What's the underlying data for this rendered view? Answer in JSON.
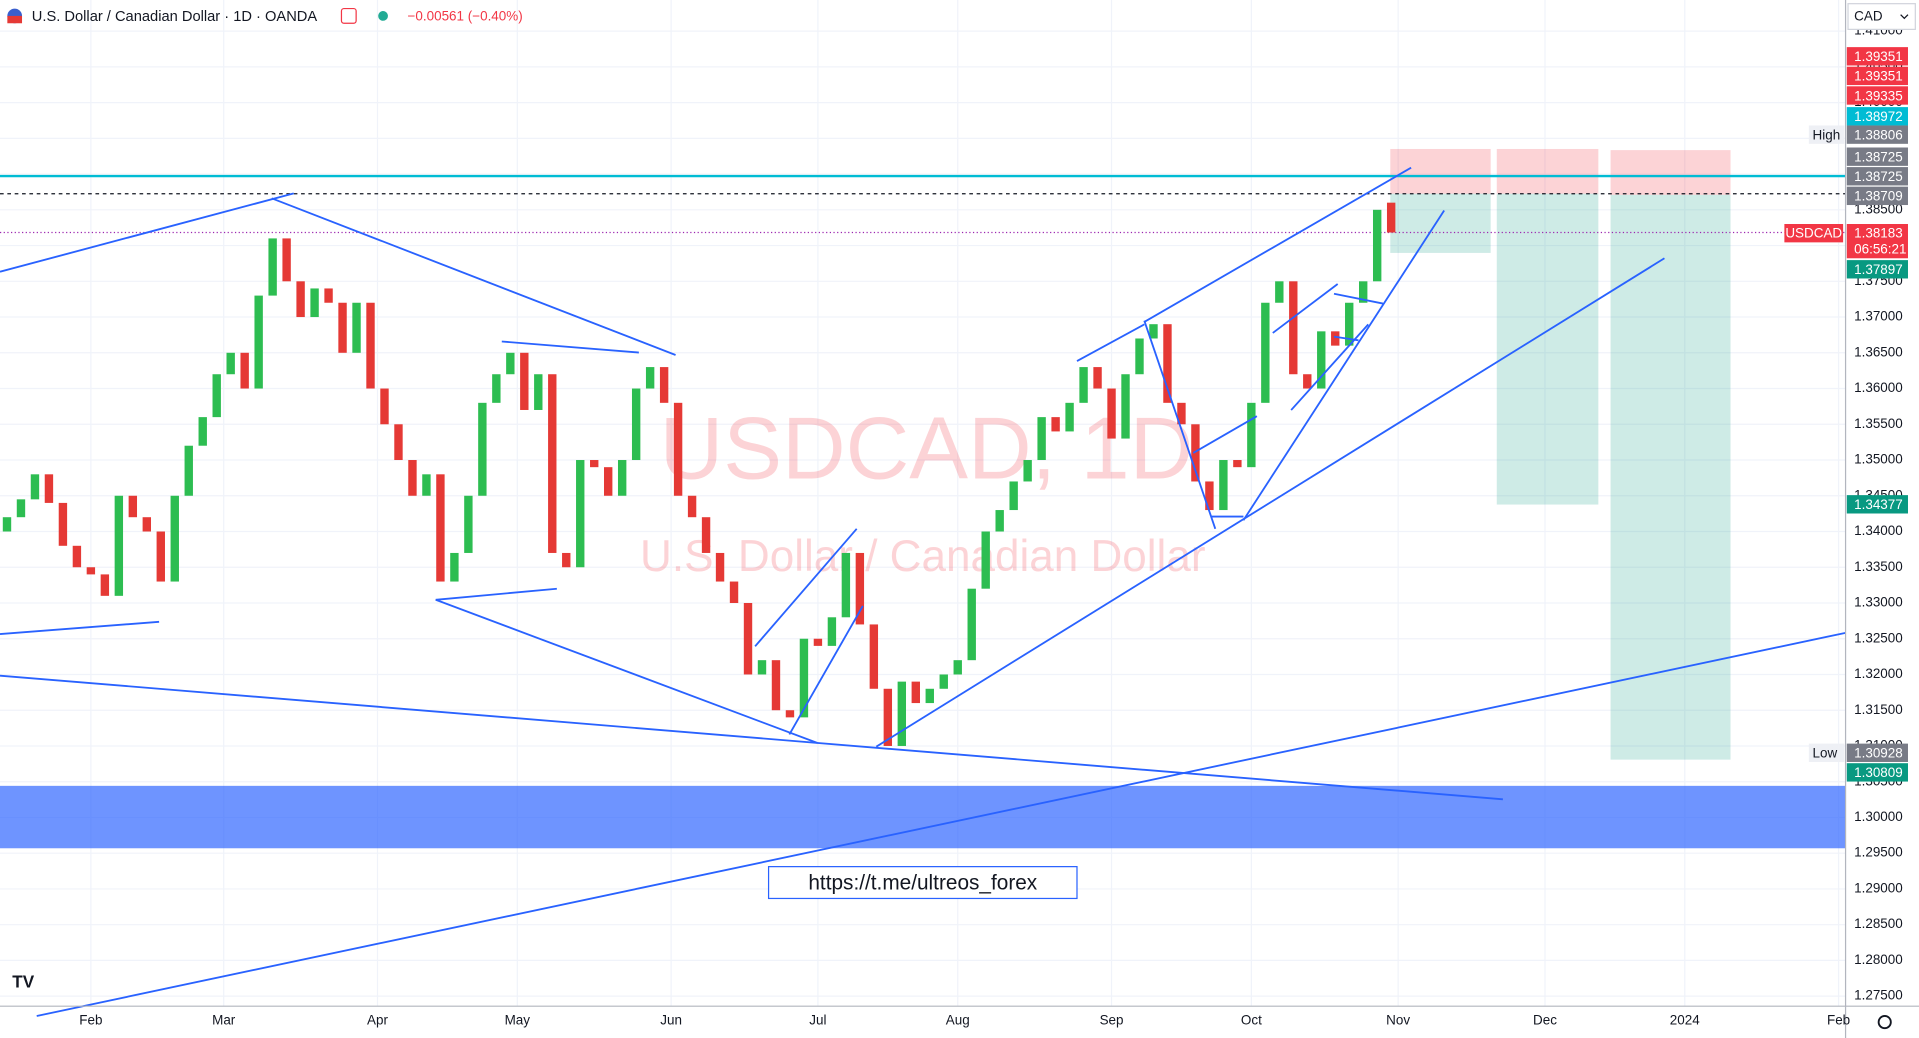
{
  "chart_data": {
    "type": "candlestick",
    "title": "U.S. Dollar / Canadian Dollar · 1D · OANDA",
    "change": "−0.00561 (−0.40%)",
    "currency": "CAD",
    "watermark": "USDCAD, 1D",
    "watermark_subtitle": "U.S. Dollar / Canadian Dollar",
    "link": "https://t.me/ultreos_forex",
    "up_color": "#2dbd51",
    "down_color": "#e53935",
    "xlim": [
      0,
      264
    ],
    "xticks": [
      {
        "value": 13,
        "label": "Feb"
      },
      {
        "value": 32,
        "label": "Mar"
      },
      {
        "value": 54,
        "label": "Apr"
      },
      {
        "value": 74,
        "label": "May"
      },
      {
        "value": 96,
        "label": "Jun"
      },
      {
        "value": 117,
        "label": "Jul"
      },
      {
        "value": 137,
        "label": "Aug"
      },
      {
        "value": 159,
        "label": "Sep"
      },
      {
        "value": 179,
        "label": "Oct"
      },
      {
        "value": 200,
        "label": "Nov"
      },
      {
        "value": 221,
        "label": "Dec"
      },
      {
        "value": 241,
        "label": "2024"
      },
      {
        "value": 263,
        "label": "Feb"
      }
    ],
    "ylim": [
      1.2736,
      1.41435
    ],
    "yticks": [
      {
        "value": 1.275,
        "label": "1.27500"
      },
      {
        "value": 1.28,
        "label": "1.28000"
      },
      {
        "value": 1.285,
        "label": "1.28500"
      },
      {
        "value": 1.29,
        "label": "1.29000"
      },
      {
        "value": 1.295,
        "label": "1.29500"
      },
      {
        "value": 1.3,
        "label": "1.30000"
      },
      {
        "value": 1.305,
        "label": "1.30500"
      },
      {
        "value": 1.31,
        "label": "1.31000"
      },
      {
        "value": 1.315,
        "label": "1.31500"
      },
      {
        "value": 1.32,
        "label": "1.32000"
      },
      {
        "value": 1.325,
        "label": "1.32500"
      },
      {
        "value": 1.33,
        "label": "1.33000"
      },
      {
        "value": 1.335,
        "label": "1.33500"
      },
      {
        "value": 1.34,
        "label": "1.34000"
      },
      {
        "value": 1.345,
        "label": "1.34500"
      },
      {
        "value": 1.35,
        "label": "1.35000"
      },
      {
        "value": 1.355,
        "label": "1.35500"
      },
      {
        "value": 1.36,
        "label": "1.36000"
      },
      {
        "value": 1.365,
        "label": "1.36500"
      },
      {
        "value": 1.37,
        "label": "1.37000"
      },
      {
        "value": 1.375,
        "label": "1.37500"
      },
      {
        "value": 1.38,
        "label": "1.38000"
      },
      {
        "value": 1.385,
        "label": "1.38500"
      },
      {
        "value": 1.39,
        "label": "1.39000"
      },
      {
        "value": 1.395,
        "label": "1.39500"
      },
      {
        "value": 1.4,
        "label": "1.40000"
      },
      {
        "value": 1.405,
        "label": "1.40500"
      },
      {
        "value": 1.41,
        "label": "1.41000"
      }
    ],
    "x": [
      0,
      2,
      4,
      6,
      8,
      10,
      12,
      14,
      16,
      18,
      20,
      22,
      24,
      26,
      28,
      30,
      32,
      34,
      36,
      38,
      40,
      42,
      44,
      46,
      48,
      50,
      52,
      54,
      56,
      58,
      60,
      62,
      64,
      66,
      68,
      70,
      72,
      74,
      76,
      78,
      80,
      82,
      84,
      86,
      88,
      90,
      92,
      94,
      96,
      98,
      100,
      102,
      104,
      106,
      108,
      110,
      112,
      114,
      116,
      118,
      120,
      122,
      124,
      126,
      128,
      130,
      132,
      134,
      136,
      138,
      140,
      142,
      144,
      146,
      148,
      150,
      152,
      154,
      156,
      158,
      160,
      162,
      164,
      166,
      168,
      170,
      172,
      174,
      176,
      178,
      180,
      182,
      184,
      186,
      188,
      190,
      192,
      194,
      196,
      198
    ],
    "open": [
      1.34,
      1.342,
      1.3445,
      1.348,
      1.344,
      1.338,
      1.335,
      1.334,
      1.331,
      1.345,
      1.342,
      1.34,
      1.333,
      1.345,
      1.352,
      1.356,
      1.362,
      1.365,
      1.36,
      1.373,
      1.381,
      1.375,
      1.37,
      1.374,
      1.372,
      1.365,
      1.372,
      1.36,
      1.355,
      1.35,
      1.345,
      1.348,
      1.333,
      1.337,
      1.345,
      1.358,
      1.362,
      1.365,
      1.357,
      1.362,
      1.337,
      1.335,
      1.35,
      1.349,
      1.345,
      1.35,
      1.36,
      1.363,
      1.358,
      1.345,
      1.342,
      1.337,
      1.333,
      1.33,
      1.32,
      1.322,
      1.315,
      1.314,
      1.325,
      1.324,
      1.328,
      1.337,
      1.327,
      1.318,
      1.31,
      1.319,
      1.316,
      1.318,
      1.32,
      1.322,
      1.332,
      1.34,
      1.343,
      1.347,
      1.35,
      1.356,
      1.354,
      1.358,
      1.363,
      1.36,
      1.353,
      1.362,
      1.367,
      1.369,
      1.358,
      1.355,
      1.347,
      1.343,
      1.35,
      1.349,
      1.358,
      1.372,
      1.375,
      1.362,
      1.36,
      1.368,
      1.366,
      1.372,
      1.375,
      1.386
    ],
    "high": {
      "caption": "High",
      "value": 1.38806,
      "color": "#787b86"
    },
    "low": {
      "caption": "Low",
      "value": 1.30928,
      "color": "#787b86"
    },
    "close": [
      1.342,
      1.3445,
      1.348,
      1.344,
      1.338,
      1.335,
      1.334,
      1.331,
      1.345,
      1.342,
      1.34,
      1.333,
      1.345,
      1.352,
      1.356,
      1.362,
      1.365,
      1.36,
      1.373,
      1.381,
      1.375,
      1.37,
      1.374,
      1.372,
      1.365,
      1.372,
      1.36,
      1.355,
      1.35,
      1.345,
      1.348,
      1.333,
      1.337,
      1.345,
      1.358,
      1.362,
      1.365,
      1.357,
      1.362,
      1.337,
      1.335,
      1.35,
      1.349,
      1.345,
      1.35,
      1.36,
      1.363,
      1.358,
      1.345,
      1.342,
      1.337,
      1.333,
      1.33,
      1.32,
      1.322,
      1.315,
      1.314,
      1.325,
      1.324,
      1.328,
      1.337,
      1.327,
      1.318,
      1.31,
      1.319,
      1.316,
      1.318,
      1.32,
      1.322,
      1.332,
      1.34,
      1.343,
      1.347,
      1.35,
      1.356,
      1.354,
      1.358,
      1.363,
      1.36,
      1.353,
      1.362,
      1.367,
      1.369,
      1.358,
      1.355,
      1.347,
      1.343,
      1.35,
      1.349,
      1.358,
      1.372,
      1.375,
      1.362,
      1.36,
      1.368,
      1.366,
      1.372,
      1.375,
      1.385,
      1.38183
    ],
    "stop_color": "#f23645",
    "target_color": "#089981",
    "entry_color": "#787b86",
    "positions": [
      {
        "stop": 1.39351,
        "entry": 1.38725,
        "target": 1.37897
      },
      {
        "stop": 1.39351,
        "entry": 1.38725,
        "target": 1.34377
      },
      {
        "stop": 1.39335,
        "entry": 1.38709,
        "target": 1.30809
      }
    ],
    "level": {
      "value": 1.38972,
      "color": "#00bcd4"
    },
    "last": {
      "symbol": "USDCAD",
      "value": 1.38183,
      "countdown": "06:56:21",
      "color": "#f23645"
    }
  }
}
